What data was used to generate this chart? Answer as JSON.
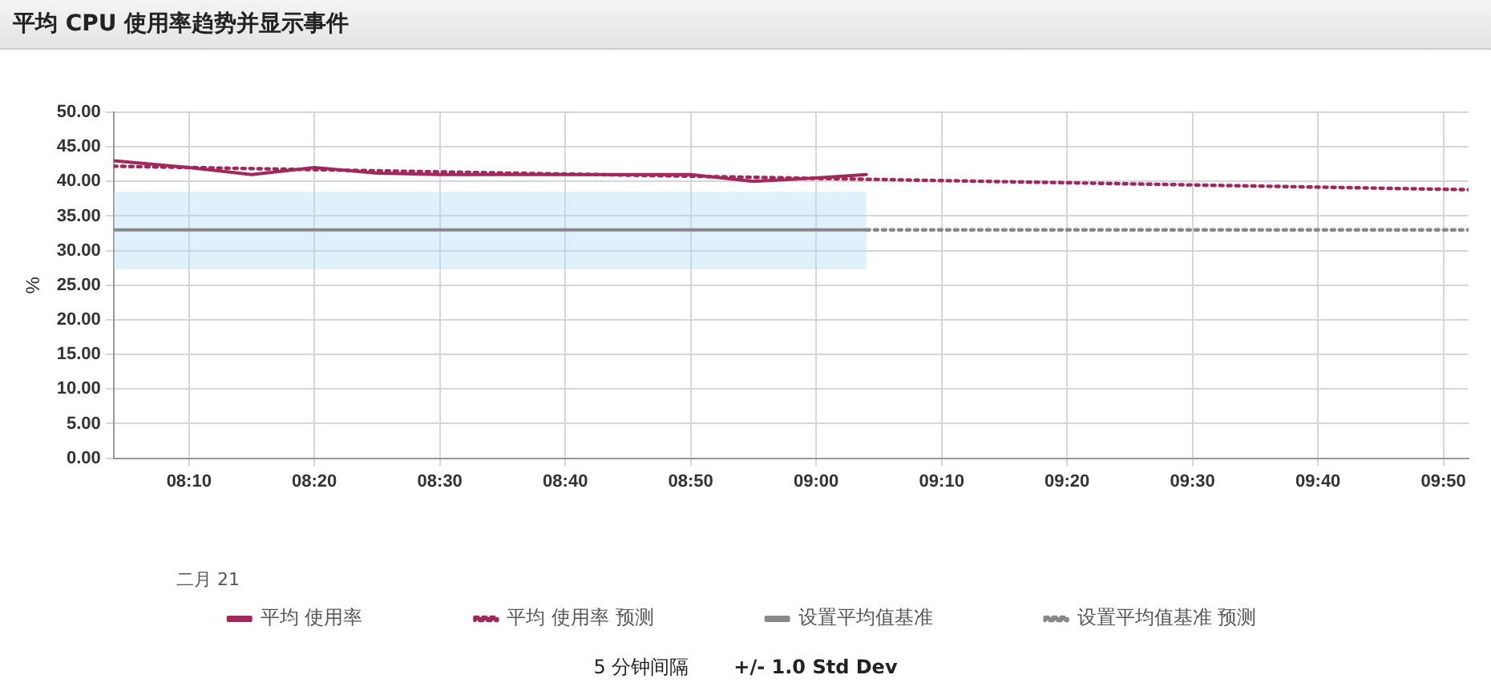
{
  "chart_data": {
    "type": "line",
    "title": "平均 CPU 使用率趋势并显示事件",
    "ylabel": "%",
    "xlim": [
      8.0667,
      9.8667
    ],
    "xticks": [
      {
        "value": 8.1667,
        "label": "08:10"
      },
      {
        "value": 8.3333,
        "label": "08:20"
      },
      {
        "value": 8.5,
        "label": "08:30"
      },
      {
        "value": 8.6667,
        "label": "08:40"
      },
      {
        "value": 8.8333,
        "label": "08:50"
      },
      {
        "value": 9.0,
        "label": "09:00"
      },
      {
        "value": 9.1667,
        "label": "09:10"
      },
      {
        "value": 9.3333,
        "label": "09:20"
      },
      {
        "value": 9.5,
        "label": "09:30"
      },
      {
        "value": 9.6667,
        "label": "09:40"
      },
      {
        "value": 9.8333,
        "label": "09:50"
      }
    ],
    "ylim": [
      0,
      50
    ],
    "yticks": [
      {
        "value": 0,
        "label": "0.00"
      },
      {
        "value": 5,
        "label": "5.00"
      },
      {
        "value": 10,
        "label": "10.00"
      },
      {
        "value": 15,
        "label": "15.00"
      },
      {
        "value": 20,
        "label": "20.00"
      },
      {
        "value": 25,
        "label": "25.00"
      },
      {
        "value": 30,
        "label": "30.00"
      },
      {
        "value": 35,
        "label": "35.00"
      },
      {
        "value": 40,
        "label": "40.00"
      },
      {
        "value": 45,
        "label": "45.00"
      },
      {
        "value": 50,
        "label": "50.00"
      }
    ],
    "series": [
      {
        "name": "平均 使用率",
        "color": "#a0285a",
        "line_style": "solid",
        "x": [
          8.0667,
          8.1667,
          8.25,
          8.3333,
          8.4167,
          8.5,
          8.6667,
          8.8333,
          8.9167,
          9.0,
          9.0667
        ],
        "values": [
          43.0,
          42.0,
          41.0,
          42.0,
          41.2,
          41.0,
          41.0,
          41.0,
          40.0,
          40.5,
          41.0
        ]
      },
      {
        "name": "平均 使用率 预测",
        "color": "#a0285a",
        "line_style": "dotted",
        "x": [
          8.0667,
          9.8667
        ],
        "values": [
          42.2,
          38.8
        ]
      },
      {
        "name": "设置平均值基准",
        "color": "#888888",
        "line_style": "solid",
        "x": [
          8.0667,
          9.0667
        ],
        "values": [
          33.0,
          33.0
        ],
        "lower": [
          27.3,
          27.3
        ],
        "upper": [
          38.5,
          38.5
        ]
      },
      {
        "name": "设置平均值基准 预测",
        "color": "#888888",
        "line_style": "dotted",
        "x": [
          9.0667,
          9.8667
        ],
        "values": [
          33.0,
          33.0
        ]
      }
    ],
    "grid": true,
    "legend": "bottom",
    "marker": "none",
    "annotations": [
      "二月 21",
      "5 分钟间隔",
      "+/- 1.0 Std Dev"
    ]
  }
}
